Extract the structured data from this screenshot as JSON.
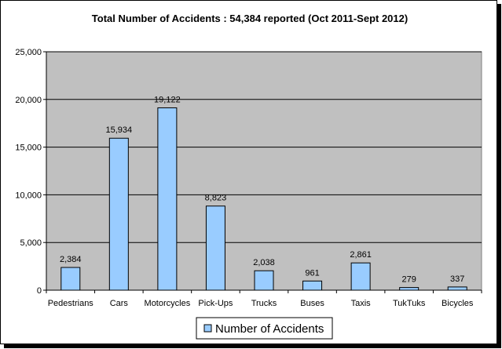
{
  "chart_data": {
    "type": "bar",
    "title": "Total Number of Accidents : 54,384 reported (Oct 2011-Sept 2012)",
    "categories": [
      "Pedestrians",
      "Cars",
      "Motorcycles",
      "Pick-Ups",
      "Trucks",
      "Buses",
      "Taxis",
      "TukTuks",
      "Bicycles"
    ],
    "series": [
      {
        "name": "Number of Accidents",
        "values": [
          2384,
          15934,
          19122,
          8823,
          2038,
          961,
          2861,
          279,
          337
        ],
        "value_labels": [
          "2,384",
          "15,934",
          "19,122",
          "8,823",
          "2,038",
          "961",
          "2,861",
          "279",
          "337"
        ]
      }
    ],
    "yticks": [
      0,
      5000,
      10000,
      15000,
      20000,
      25000
    ],
    "ytick_labels": [
      "0",
      "5,000",
      "10,000",
      "15,000",
      "20,000",
      "25,000"
    ],
    "ylim": [
      0,
      25000
    ],
    "grid": true,
    "legend_position": "bottom",
    "colors": {
      "bar_fill": "#99ccff",
      "bar_stroke": "#000000",
      "plot_background": "#c0c0c0",
      "gridline": "#000000"
    }
  }
}
